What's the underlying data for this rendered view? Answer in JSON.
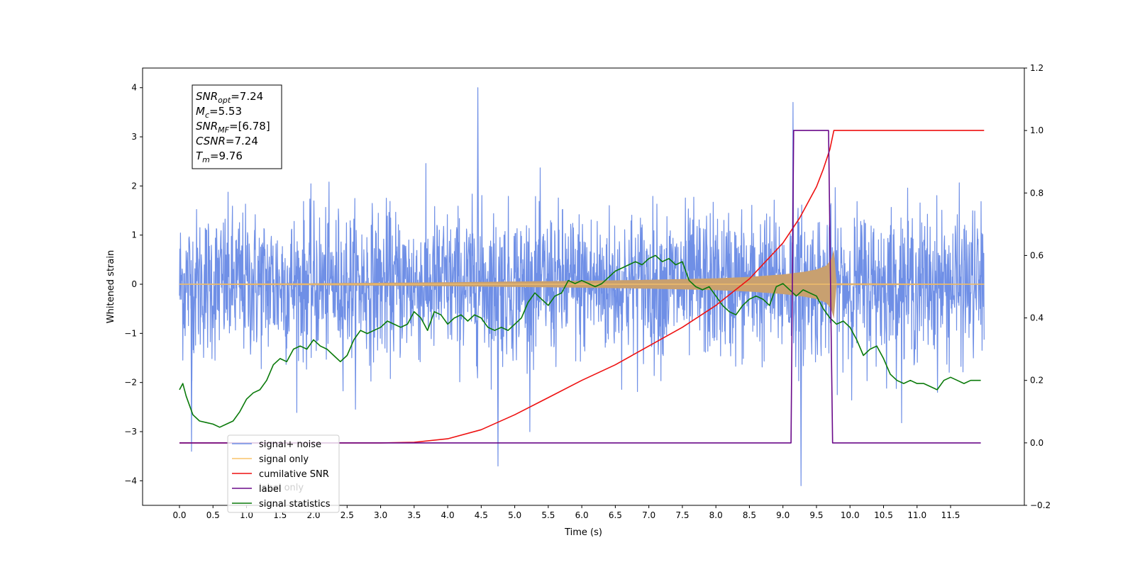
{
  "chart_data": {
    "type": "line",
    "xlabel": "Time (s)",
    "ylabel": "Whitened strain",
    "xlim": [
      -0.55,
      12.6
    ],
    "ylim": [
      -4.5,
      4.4
    ],
    "y2lim": [
      -0.2,
      1.2
    ],
    "xticks": [
      "0.0",
      "0.5",
      "1.0",
      "1.5",
      "2.0",
      "2.5",
      "3.0",
      "3.5",
      "4.0",
      "4.5",
      "5.0",
      "5.5",
      "6.0",
      "6.5",
      "7.0",
      "7.5",
      "8.0",
      "8.5",
      "9.0",
      "9.5",
      "10.0",
      "10.5",
      "11.0",
      "11.5"
    ],
    "yticks": [
      "−4",
      "−3",
      "−2",
      "−1",
      "0",
      "1",
      "2",
      "3",
      "4"
    ],
    "y2ticks": [
      "−0.2",
      "0.0",
      "0.2",
      "0.4",
      "0.6",
      "0.8",
      "1.0",
      "1.2"
    ],
    "annotation": {
      "lines": [
        {
          "base": "SNR",
          "sub": "opt",
          "rest": "=7.24"
        },
        {
          "base": "M",
          "sub": "c",
          "rest": "=5.53"
        },
        {
          "base": "SNR",
          "sub": "MF",
          "rest": "=[6.78]"
        },
        {
          "base": "CSNR",
          "sub": "",
          "rest": "=7.24"
        },
        {
          "base": "T",
          "sub": "m",
          "rest": "=9.76"
        }
      ]
    },
    "legend": {
      "placement": "lower-left",
      "entries": [
        {
          "label": "signal+ noise",
          "color": "#6f8fe6"
        },
        {
          "label": "signal only",
          "color": "#f8c46a"
        },
        {
          "label": "cumilative SNR",
          "color": "#ee1111"
        },
        {
          "label": "label",
          "color": "#6a0a8a"
        },
        {
          "label": "signal statistics",
          "color": "#0a7a0a"
        }
      ],
      "hidden_behind": "label only"
    },
    "series": [
      {
        "name": "signal+ noise",
        "axis": "left",
        "color": "#6f8fe6",
        "x_range": [
          0.0,
          12.0
        ],
        "envelope_rms": 0.75,
        "notable_peaks": [
          {
            "x": 4.45,
            "y": 4.0
          },
          {
            "x": 9.15,
            "y": 3.7
          },
          {
            "x": 9.27,
            "y": -4.1
          },
          {
            "x": 0.18,
            "y": -3.4
          },
          {
            "x": 4.75,
            "y": -3.7
          }
        ]
      },
      {
        "name": "signal only",
        "axis": "left",
        "color": "#f8c46a",
        "fill_color": "#c8a070",
        "x_range": [
          0.0,
          12.0
        ],
        "envelope": {
          "x": [
            0.0,
            2.0,
            4.0,
            6.0,
            7.0,
            8.0,
            8.5,
            9.0,
            9.3,
            9.5,
            9.65,
            9.74,
            9.76,
            9.78,
            12.0
          ],
          "amp": [
            0.01,
            0.02,
            0.04,
            0.07,
            0.09,
            0.12,
            0.15,
            0.2,
            0.25,
            0.3,
            0.38,
            0.55,
            0.7,
            0.02,
            0.01
          ]
        }
      },
      {
        "name": "cumilative SNR",
        "axis": "right",
        "color": "#ee1111",
        "x": [
          0.0,
          1.0,
          2.0,
          3.0,
          3.5,
          4.0,
          4.5,
          5.0,
          5.5,
          6.0,
          6.5,
          7.0,
          7.5,
          8.0,
          8.5,
          9.0,
          9.25,
          9.5,
          9.6,
          9.7,
          9.76,
          9.8,
          12.0
        ],
        "y": [
          0.0,
          0.0,
          0.0,
          0.0,
          0.002,
          0.013,
          0.042,
          0.09,
          0.145,
          0.2,
          0.25,
          0.31,
          0.37,
          0.44,
          0.525,
          0.64,
          0.72,
          0.82,
          0.875,
          0.94,
          1.0,
          1.0,
          1.0
        ]
      },
      {
        "name": "label",
        "axis": "right",
        "color": "#6a0a8a",
        "x": [
          0.0,
          9.12,
          9.16,
          9.68,
          9.74,
          11.95
        ],
        "y": [
          0.0,
          0.0,
          1.0,
          1.0,
          0.0,
          0.0
        ]
      },
      {
        "name": "signal statistics",
        "axis": "right",
        "color": "#0a7a0a",
        "x": [
          0.0,
          0.05,
          0.1,
          0.2,
          0.3,
          0.4,
          0.5,
          0.6,
          0.7,
          0.8,
          0.9,
          1.0,
          1.1,
          1.2,
          1.3,
          1.4,
          1.5,
          1.6,
          1.7,
          1.8,
          1.9,
          2.0,
          2.1,
          2.2,
          2.3,
          2.4,
          2.5,
          2.6,
          2.7,
          2.8,
          2.9,
          3.0,
          3.1,
          3.2,
          3.3,
          3.4,
          3.5,
          3.6,
          3.7,
          3.8,
          3.9,
          4.0,
          4.1,
          4.2,
          4.3,
          4.4,
          4.5,
          4.6,
          4.7,
          4.8,
          4.9,
          5.0,
          5.1,
          5.2,
          5.3,
          5.4,
          5.5,
          5.6,
          5.7,
          5.8,
          5.9,
          6.0,
          6.1,
          6.2,
          6.3,
          6.4,
          6.5,
          6.6,
          6.7,
          6.8,
          6.9,
          7.0,
          7.1,
          7.2,
          7.3,
          7.4,
          7.5,
          7.6,
          7.7,
          7.8,
          7.9,
          8.0,
          8.1,
          8.2,
          8.3,
          8.4,
          8.5,
          8.6,
          8.7,
          8.8,
          8.9,
          9.0,
          9.1,
          9.2,
          9.3,
          9.4,
          9.5,
          9.6,
          9.7,
          9.8,
          9.9,
          10.0,
          10.1,
          10.2,
          10.3,
          10.4,
          10.5,
          10.6,
          10.7,
          10.8,
          10.9,
          11.0,
          11.1,
          11.2,
          11.3,
          11.4,
          11.5,
          11.6,
          11.7,
          11.8,
          11.95
        ],
        "y": [
          0.17,
          0.19,
          0.15,
          0.09,
          0.07,
          0.065,
          0.06,
          0.05,
          0.06,
          0.07,
          0.1,
          0.14,
          0.16,
          0.17,
          0.2,
          0.25,
          0.27,
          0.26,
          0.3,
          0.31,
          0.3,
          0.33,
          0.31,
          0.3,
          0.28,
          0.26,
          0.28,
          0.33,
          0.36,
          0.35,
          0.36,
          0.37,
          0.39,
          0.38,
          0.37,
          0.38,
          0.42,
          0.4,
          0.36,
          0.42,
          0.41,
          0.38,
          0.4,
          0.41,
          0.39,
          0.41,
          0.4,
          0.37,
          0.36,
          0.37,
          0.36,
          0.38,
          0.4,
          0.45,
          0.48,
          0.46,
          0.44,
          0.47,
          0.48,
          0.52,
          0.51,
          0.52,
          0.51,
          0.5,
          0.51,
          0.53,
          0.55,
          0.56,
          0.57,
          0.58,
          0.57,
          0.59,
          0.6,
          0.58,
          0.59,
          0.57,
          0.58,
          0.52,
          0.5,
          0.49,
          0.5,
          0.47,
          0.44,
          0.42,
          0.41,
          0.44,
          0.46,
          0.47,
          0.46,
          0.44,
          0.5,
          0.51,
          0.49,
          0.47,
          0.49,
          0.48,
          0.47,
          0.43,
          0.4,
          0.38,
          0.39,
          0.37,
          0.33,
          0.28,
          0.3,
          0.31,
          0.27,
          0.22,
          0.2,
          0.19,
          0.2,
          0.19,
          0.19,
          0.18,
          0.17,
          0.2,
          0.21,
          0.2,
          0.19,
          0.2,
          0.2
        ]
      }
    ]
  }
}
